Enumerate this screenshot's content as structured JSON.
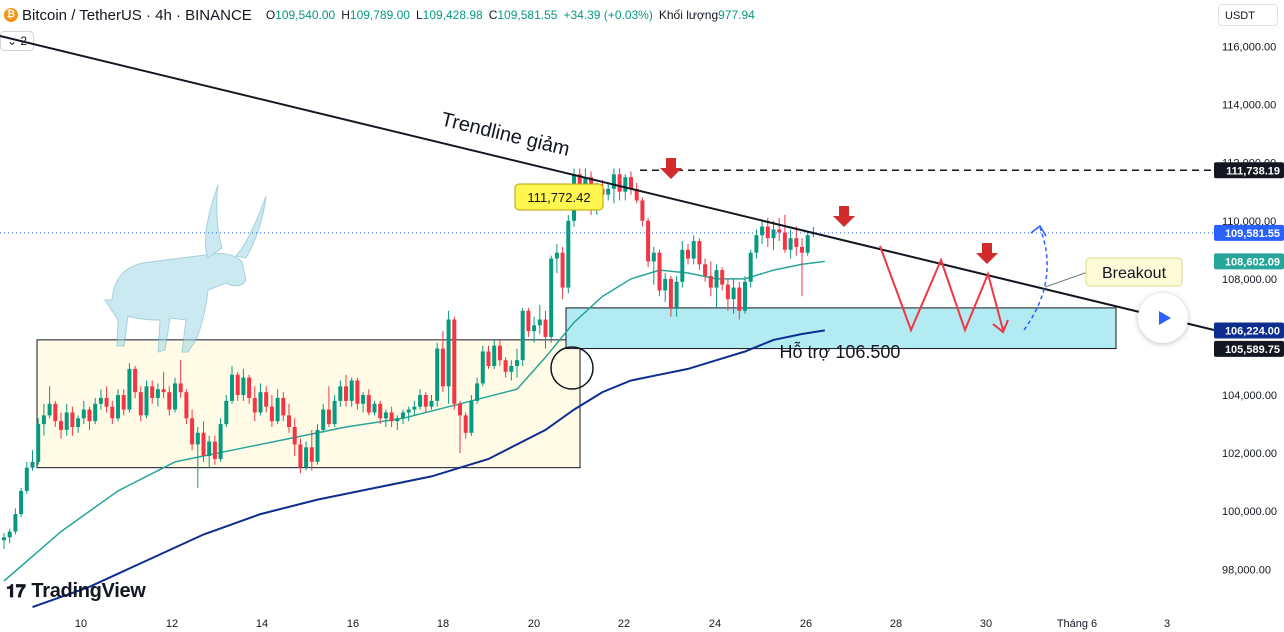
{
  "header": {
    "symbol": "Bitcoin / TetherUS · 4h · BINANCE",
    "coin_glyph": "₿",
    "o_label": "O",
    "o_value": "109,540.00",
    "h_label": "H",
    "h_value": "109,789.00",
    "l_label": "L",
    "l_value": "109,428.98",
    "c_label": "C",
    "c_value": "109,581.55",
    "change": "+34.39 (+0.03%)",
    "volume_label": "Khối lượng",
    "volume_value": "977.94"
  },
  "indicator_toggle": "⌄ 2",
  "currency": "USDT",
  "brand": "TradingView",
  "colors": {
    "up": "#089981",
    "down": "#f23645",
    "ema_fast": "#26a69a",
    "ema_slow": "#0d2d8f",
    "support_zone": "#b3ebf2",
    "range_box": "#fffbe6",
    "annotation_red": "#f23645"
  },
  "chart_data": {
    "type": "candlestick",
    "symbol": "BTCUSDT",
    "timeframe": "4h",
    "y_range": [
      96600,
      117600
    ],
    "y_ticks": [
      {
        "value": 98000,
        "label": "98,000.00"
      },
      {
        "value": 100000,
        "label": "100,000.00"
      },
      {
        "value": 102000,
        "label": "102,000.00"
      },
      {
        "value": 104000,
        "label": "104,000.00"
      },
      {
        "value": 108000,
        "label": "108,000.00"
      },
      {
        "value": 110000,
        "label": "110,000.00"
      },
      {
        "value": 112000,
        "label": "112,000.00"
      },
      {
        "value": 114000,
        "label": "114,000.00"
      },
      {
        "value": 116000,
        "label": "116,000.00"
      }
    ],
    "x_ticks": [
      "10",
      "12",
      "14",
      "16",
      "18",
      "20",
      "22",
      "24",
      "26",
      "28",
      "30",
      "Tháng 6",
      "3"
    ],
    "price_labels": [
      {
        "value": 111738.19,
        "label": "111,738.19",
        "bg": "#131722"
      },
      {
        "value": 109581.55,
        "label": "109,581.55",
        "bg": "#2962ff"
      },
      {
        "value": 108602.09,
        "label": "108,602.09",
        "bg": "#26a69a"
      },
      {
        "value": 106224.0,
        "label": "106,224.00",
        "bg": "#0d2d8f"
      },
      {
        "value": 105589.75,
        "label": "105,589.75",
        "bg": "#131722"
      }
    ],
    "candles": [
      {
        "o": 99000,
        "h": 99250,
        "l": 98700,
        "c": 99100
      },
      {
        "o": 99100,
        "h": 99400,
        "l": 98900,
        "c": 99300
      },
      {
        "o": 99300,
        "h": 100100,
        "l": 99200,
        "c": 99900
      },
      {
        "o": 99900,
        "h": 100800,
        "l": 99800,
        "c": 100700
      },
      {
        "o": 100700,
        "h": 101700,
        "l": 100600,
        "c": 101500
      },
      {
        "o": 101500,
        "h": 102100,
        "l": 101400,
        "c": 101700
      },
      {
        "o": 101700,
        "h": 103200,
        "l": 101600,
        "c": 103000
      },
      {
        "o": 103000,
        "h": 103700,
        "l": 102600,
        "c": 103300
      },
      {
        "o": 103300,
        "h": 104300,
        "l": 103200,
        "c": 103700
      },
      {
        "o": 103700,
        "h": 103800,
        "l": 102900,
        "c": 103100
      },
      {
        "o": 103100,
        "h": 103400,
        "l": 102500,
        "c": 102800
      },
      {
        "o": 102800,
        "h": 103700,
        "l": 102600,
        "c": 103400
      },
      {
        "o": 103400,
        "h": 103600,
        "l": 102600,
        "c": 102900
      },
      {
        "o": 102900,
        "h": 103300,
        "l": 102700,
        "c": 103200
      },
      {
        "o": 103200,
        "h": 103800,
        "l": 103000,
        "c": 103500
      },
      {
        "o": 103500,
        "h": 103600,
        "l": 102800,
        "c": 103100
      },
      {
        "o": 103100,
        "h": 103900,
        "l": 103000,
        "c": 103700
      },
      {
        "o": 103700,
        "h": 104200,
        "l": 103500,
        "c": 103900
      },
      {
        "o": 103900,
        "h": 104300,
        "l": 103400,
        "c": 103600
      },
      {
        "o": 103600,
        "h": 103800,
        "l": 103000,
        "c": 103200
      },
      {
        "o": 103200,
        "h": 104200,
        "l": 103100,
        "c": 104000
      },
      {
        "o": 104000,
        "h": 104200,
        "l": 103300,
        "c": 103500
      },
      {
        "o": 103500,
        "h": 105100,
        "l": 103400,
        "c": 104900
      },
      {
        "o": 104900,
        "h": 105000,
        "l": 103900,
        "c": 104100
      },
      {
        "o": 104100,
        "h": 104300,
        "l": 103100,
        "c": 103300
      },
      {
        "o": 103300,
        "h": 104500,
        "l": 103200,
        "c": 104300
      },
      {
        "o": 104300,
        "h": 104500,
        "l": 103700,
        "c": 103900
      },
      {
        "o": 103900,
        "h": 104400,
        "l": 103600,
        "c": 104200
      },
      {
        "o": 104200,
        "h": 104800,
        "l": 103900,
        "c": 104100
      },
      {
        "o": 104100,
        "h": 104300,
        "l": 103300,
        "c": 103500
      },
      {
        "o": 103500,
        "h": 104600,
        "l": 103400,
        "c": 104400
      },
      {
        "o": 104400,
        "h": 105200,
        "l": 103900,
        "c": 104100
      },
      {
        "o": 104100,
        "h": 104200,
        "l": 103000,
        "c": 103200
      },
      {
        "o": 103200,
        "h": 103500,
        "l": 102100,
        "c": 102300
      },
      {
        "o": 102300,
        "h": 102900,
        "l": 100800,
        "c": 102700
      },
      {
        "o": 102700,
        "h": 103100,
        "l": 101700,
        "c": 101900
      },
      {
        "o": 101900,
        "h": 102600,
        "l": 101500,
        "c": 102400
      },
      {
        "o": 102400,
        "h": 102600,
        "l": 101600,
        "c": 101800
      },
      {
        "o": 101800,
        "h": 103200,
        "l": 101700,
        "c": 103000
      },
      {
        "o": 103000,
        "h": 104000,
        "l": 102900,
        "c": 103800
      },
      {
        "o": 103800,
        "h": 105000,
        "l": 103700,
        "c": 104700
      },
      {
        "o": 104700,
        "h": 104800,
        "l": 103800,
        "c": 104000
      },
      {
        "o": 104000,
        "h": 104900,
        "l": 103800,
        "c": 104600
      },
      {
        "o": 104600,
        "h": 104700,
        "l": 103700,
        "c": 103900
      },
      {
        "o": 103900,
        "h": 104300,
        "l": 103100,
        "c": 103400
      },
      {
        "o": 103400,
        "h": 104400,
        "l": 103300,
        "c": 104100
      },
      {
        "o": 104100,
        "h": 104300,
        "l": 103400,
        "c": 103600
      },
      {
        "o": 103600,
        "h": 104000,
        "l": 102900,
        "c": 103100
      },
      {
        "o": 103100,
        "h": 104200,
        "l": 103000,
        "c": 103900
      },
      {
        "o": 103900,
        "h": 104100,
        "l": 103100,
        "c": 103300
      },
      {
        "o": 103300,
        "h": 103700,
        "l": 102700,
        "c": 102900
      },
      {
        "o": 102900,
        "h": 103200,
        "l": 101900,
        "c": 102300
      },
      {
        "o": 102300,
        "h": 102500,
        "l": 101300,
        "c": 101500
      },
      {
        "o": 101500,
        "h": 102400,
        "l": 101400,
        "c": 102200
      },
      {
        "o": 102200,
        "h": 102800,
        "l": 101400,
        "c": 101700
      },
      {
        "o": 101700,
        "h": 103000,
        "l": 101600,
        "c": 102800
      },
      {
        "o": 102800,
        "h": 103700,
        "l": 102700,
        "c": 103500
      },
      {
        "o": 103500,
        "h": 104300,
        "l": 102900,
        "c": 103000
      },
      {
        "o": 103000,
        "h": 104000,
        "l": 102900,
        "c": 103800
      },
      {
        "o": 103800,
        "h": 104500,
        "l": 103600,
        "c": 104300
      },
      {
        "o": 104300,
        "h": 104700,
        "l": 103600,
        "c": 103800
      },
      {
        "o": 103800,
        "h": 104600,
        "l": 103600,
        "c": 104500
      },
      {
        "o": 104500,
        "h": 104600,
        "l": 103500,
        "c": 103700
      },
      {
        "o": 103700,
        "h": 104100,
        "l": 103400,
        "c": 104000
      },
      {
        "o": 104000,
        "h": 104200,
        "l": 103300,
        "c": 103400
      },
      {
        "o": 103400,
        "h": 103800,
        "l": 103300,
        "c": 103700
      },
      {
        "o": 103700,
        "h": 103800,
        "l": 103000,
        "c": 103200
      },
      {
        "o": 103200,
        "h": 103500,
        "l": 102900,
        "c": 103400
      },
      {
        "o": 103400,
        "h": 103600,
        "l": 102900,
        "c": 103100
      },
      {
        "o": 103100,
        "h": 103300,
        "l": 102800,
        "c": 103200
      },
      {
        "o": 103200,
        "h": 103500,
        "l": 103000,
        "c": 103400
      },
      {
        "o": 103400,
        "h": 103600,
        "l": 103100,
        "c": 103500
      },
      {
        "o": 103500,
        "h": 103800,
        "l": 103300,
        "c": 103600
      },
      {
        "o": 103600,
        "h": 104200,
        "l": 103500,
        "c": 104000
      },
      {
        "o": 104000,
        "h": 104100,
        "l": 103400,
        "c": 103600
      },
      {
        "o": 103600,
        "h": 104000,
        "l": 103500,
        "c": 103800
      },
      {
        "o": 103800,
        "h": 105800,
        "l": 103600,
        "c": 105600
      },
      {
        "o": 105600,
        "h": 106200,
        "l": 104100,
        "c": 104300
      },
      {
        "o": 104300,
        "h": 106900,
        "l": 103700,
        "c": 106600
      },
      {
        "o": 106600,
        "h": 106700,
        "l": 103500,
        "c": 103700
      },
      {
        "o": 103700,
        "h": 103800,
        "l": 102000,
        "c": 103300
      },
      {
        "o": 103300,
        "h": 103400,
        "l": 102500,
        "c": 102700
      },
      {
        "o": 102700,
        "h": 104000,
        "l": 102600,
        "c": 103800
      },
      {
        "o": 103800,
        "h": 104600,
        "l": 103700,
        "c": 104400
      },
      {
        "o": 104400,
        "h": 105700,
        "l": 104300,
        "c": 105500
      },
      {
        "o": 105500,
        "h": 105700,
        "l": 104900,
        "c": 105000
      },
      {
        "o": 105000,
        "h": 105900,
        "l": 104900,
        "c": 105700
      },
      {
        "o": 105700,
        "h": 105900,
        "l": 105000,
        "c": 105200
      },
      {
        "o": 105200,
        "h": 105300,
        "l": 104600,
        "c": 104800
      },
      {
        "o": 104800,
        "h": 105200,
        "l": 104500,
        "c": 105000
      },
      {
        "o": 105000,
        "h": 105600,
        "l": 104600,
        "c": 105200
      },
      {
        "o": 105200,
        "h": 107000,
        "l": 105000,
        "c": 106900
      },
      {
        "o": 106900,
        "h": 107000,
        "l": 106000,
        "c": 106200
      },
      {
        "o": 106200,
        "h": 106700,
        "l": 105800,
        "c": 106400
      },
      {
        "o": 106400,
        "h": 107100,
        "l": 106100,
        "c": 106600
      },
      {
        "o": 106600,
        "h": 106900,
        "l": 105600,
        "c": 106000
      },
      {
        "o": 106000,
        "h": 108800,
        "l": 105800,
        "c": 108700
      },
      {
        "o": 108700,
        "h": 109200,
        "l": 108200,
        "c": 108900
      },
      {
        "o": 108900,
        "h": 109100,
        "l": 107300,
        "c": 107700
      },
      {
        "o": 107700,
        "h": 110200,
        "l": 107500,
        "c": 110000
      },
      {
        "o": 110000,
        "h": 111800,
        "l": 109800,
        "c": 111600
      },
      {
        "o": 111600,
        "h": 111800,
        "l": 110700,
        "c": 110900
      },
      {
        "o": 110900,
        "h": 111800,
        "l": 110500,
        "c": 111500
      },
      {
        "o": 111500,
        "h": 111700,
        "l": 110200,
        "c": 110600
      },
      {
        "o": 110600,
        "h": 111300,
        "l": 110200,
        "c": 111100
      },
      {
        "o": 111100,
        "h": 111400,
        "l": 110600,
        "c": 110900
      },
      {
        "o": 110900,
        "h": 111300,
        "l": 110700,
        "c": 111100
      },
      {
        "o": 111100,
        "h": 111800,
        "l": 110600,
        "c": 111600
      },
      {
        "o": 111600,
        "h": 111800,
        "l": 110700,
        "c": 111000
      },
      {
        "o": 111000,
        "h": 111600,
        "l": 110700,
        "c": 111500
      },
      {
        "o": 111500,
        "h": 111700,
        "l": 110900,
        "c": 111100
      },
      {
        "o": 111100,
        "h": 111300,
        "l": 110600,
        "c": 110700
      },
      {
        "o": 110700,
        "h": 110800,
        "l": 109800,
        "c": 110000
      },
      {
        "o": 110000,
        "h": 110100,
        "l": 108400,
        "c": 108600
      },
      {
        "o": 108600,
        "h": 109100,
        "l": 107800,
        "c": 108900
      },
      {
        "o": 108900,
        "h": 109000,
        "l": 107400,
        "c": 107600
      },
      {
        "o": 107600,
        "h": 108200,
        "l": 107200,
        "c": 108000
      },
      {
        "o": 108000,
        "h": 108100,
        "l": 106700,
        "c": 107000
      },
      {
        "o": 107000,
        "h": 108100,
        "l": 106700,
        "c": 107900
      },
      {
        "o": 107900,
        "h": 109300,
        "l": 107700,
        "c": 109000
      },
      {
        "o": 109000,
        "h": 109200,
        "l": 108500,
        "c": 108700
      },
      {
        "o": 108700,
        "h": 109500,
        "l": 108500,
        "c": 109300
      },
      {
        "o": 109300,
        "h": 109400,
        "l": 108300,
        "c": 108500
      },
      {
        "o": 108500,
        "h": 108700,
        "l": 107900,
        "c": 108100
      },
      {
        "o": 108100,
        "h": 108600,
        "l": 107400,
        "c": 107700
      },
      {
        "o": 107700,
        "h": 108500,
        "l": 107000,
        "c": 108300
      },
      {
        "o": 108300,
        "h": 108400,
        "l": 107600,
        "c": 107800
      },
      {
        "o": 107800,
        "h": 108000,
        "l": 106900,
        "c": 107300
      },
      {
        "o": 107300,
        "h": 108000,
        "l": 106800,
        "c": 107700
      },
      {
        "o": 107700,
        "h": 107900,
        "l": 106600,
        "c": 106900
      },
      {
        "o": 106900,
        "h": 108100,
        "l": 106800,
        "c": 107900
      },
      {
        "o": 107900,
        "h": 109000,
        "l": 107700,
        "c": 108900
      },
      {
        "o": 108900,
        "h": 109700,
        "l": 108700,
        "c": 109500
      },
      {
        "o": 109500,
        "h": 110000,
        "l": 109200,
        "c": 109800
      },
      {
        "o": 109800,
        "h": 110100,
        "l": 109100,
        "c": 109400
      },
      {
        "o": 109400,
        "h": 110000,
        "l": 109000,
        "c": 109700
      },
      {
        "o": 109700,
        "h": 110100,
        "l": 109300,
        "c": 109600
      },
      {
        "o": 109600,
        "h": 110200,
        "l": 108900,
        "c": 109000
      },
      {
        "o": 109000,
        "h": 109700,
        "l": 108700,
        "c": 109400
      },
      {
        "o": 109400,
        "h": 109800,
        "l": 108800,
        "c": 109100
      },
      {
        "o": 109100,
        "h": 109400,
        "l": 107400,
        "c": 108900
      },
      {
        "o": 108900,
        "h": 109600,
        "l": 108800,
        "c": 109500
      },
      {
        "o": 109540,
        "h": 109789,
        "l": 109428.98,
        "c": 109581.55
      }
    ],
    "ema_fast": [
      [
        0,
        97600
      ],
      [
        10,
        99300
      ],
      [
        20,
        100700
      ],
      [
        30,
        101700
      ],
      [
        40,
        102100
      ],
      [
        50,
        102500
      ],
      [
        60,
        102900
      ],
      [
        70,
        103200
      ],
      [
        80,
        103700
      ],
      [
        90,
        104200
      ],
      [
        95,
        105300
      ],
      [
        100,
        106500
      ],
      [
        105,
        107400
      ],
      [
        110,
        108000
      ],
      [
        115,
        108300
      ],
      [
        120,
        108200
      ],
      [
        125,
        108000
      ],
      [
        130,
        108000
      ],
      [
        135,
        108300
      ],
      [
        140,
        108500
      ],
      [
        144,
        108600
      ]
    ],
    "ema_slow": [
      [
        5,
        96700
      ],
      [
        15,
        97400
      ],
      [
        25,
        98300
      ],
      [
        35,
        99200
      ],
      [
        45,
        99900
      ],
      [
        55,
        100400
      ],
      [
        65,
        100800
      ],
      [
        75,
        101200
      ],
      [
        85,
        101800
      ],
      [
        95,
        102800
      ],
      [
        100,
        103500
      ],
      [
        105,
        104100
      ],
      [
        110,
        104500
      ],
      [
        115,
        104700
      ],
      [
        120,
        104900
      ],
      [
        125,
        105200
      ],
      [
        130,
        105500
      ],
      [
        135,
        105900
      ],
      [
        140,
        106100
      ],
      [
        144,
        106224
      ]
    ],
    "annotations": {
      "trendline_label": "Trendline giảm",
      "peak_label": "111,772.42",
      "support_label": "Hỗ trợ 106.500",
      "breakout_label": "Breakout"
    }
  }
}
